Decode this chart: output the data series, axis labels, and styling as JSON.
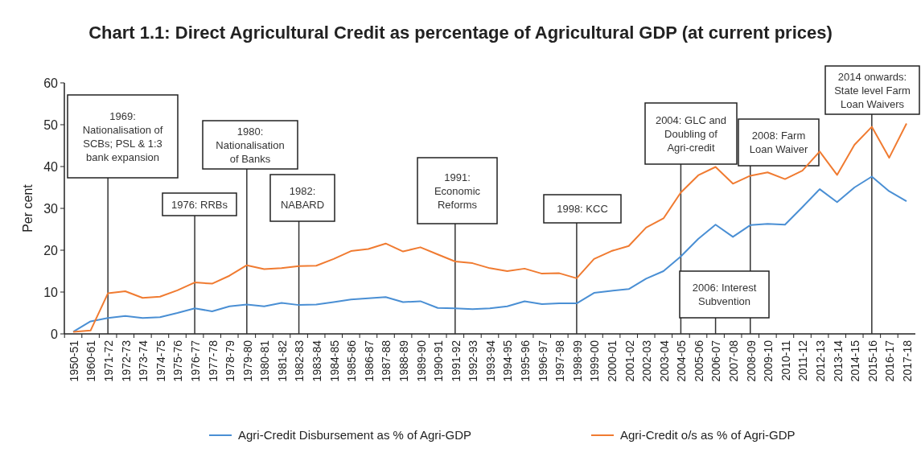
{
  "chart_data": {
    "type": "line",
    "title": "Chart 1.1: Direct Agricultural Credit as percentage of Agricultural GDP (at current prices)",
    "ylabel": "Per cent",
    "categories": [
      "1950-51",
      "1960-61",
      "1971-72",
      "1972-73",
      "1973-74",
      "1974-75",
      "1975-76",
      "1976-77",
      "1977-78",
      "1978-79",
      "1979-80",
      "1980-81",
      "1981-82",
      "1982-83",
      "1983-84",
      "1984-85",
      "1985-86",
      "1986-87",
      "1987-88",
      "1988-89",
      "1989-90",
      "1990-91",
      "1991-92",
      "1992-93",
      "1993-94",
      "1994-95",
      "1995-96",
      "1996-97",
      "1997-98",
      "1998-99",
      "1999-00",
      "2000-01",
      "2001-02",
      "2002-03",
      "2003-04",
      "2004-05",
      "2005-06",
      "2006-07",
      "2007-08",
      "2008-09",
      "2009-10",
      "2010-11",
      "2011-12",
      "2012-13",
      "2013-14",
      "2014-15",
      "2015-16",
      "2016-17",
      "2017-18"
    ],
    "series": [
      {
        "name": "Agri-Credit Disbursement as % of Agri-GDP",
        "color": "#4a8fd4",
        "values": [
          0.5,
          3,
          3.8,
          4.3,
          3.8,
          4,
          5,
          6.1,
          5.4,
          6.6,
          7,
          6.6,
          7.4,
          6.9,
          7,
          7.6,
          8.2,
          8.5,
          8.8,
          7.6,
          7.8,
          6.2,
          6.1,
          5.9,
          6.1,
          6.6,
          7.8,
          7.1,
          7.3,
          7.3,
          9.8,
          10.3,
          10.7,
          13.2,
          15,
          18.5,
          22.7,
          26.1,
          23.2,
          26,
          26.3,
          26.1,
          30.3,
          34.6,
          31.5,
          35,
          37.6,
          34.1,
          31.7
        ]
      },
      {
        "name": "Agri-Credit o/s as % of Agri-GDP",
        "color": "#f07b31",
        "values": [
          0.5,
          0.8,
          9.7,
          10.2,
          8.6,
          8.9,
          10.4,
          12.3,
          12,
          13.9,
          16.4,
          15.5,
          15.7,
          16.2,
          16.3,
          17.9,
          19.8,
          20.3,
          21.6,
          19.7,
          20.7,
          19,
          17.3,
          16.9,
          15.7,
          15,
          15.6,
          14.4,
          14.5,
          13.3,
          17.9,
          19.8,
          21,
          25.4,
          27.6,
          33.8,
          37.9,
          39.9,
          35.9,
          37.8,
          38.6,
          37,
          39,
          43.6,
          38,
          45.2,
          49.5,
          42.1,
          50.3
        ]
      }
    ],
    "ylim": [
      0,
      60
    ],
    "yticks": [
      0,
      10,
      20,
      30,
      40,
      50,
      60
    ],
    "grid": false,
    "legend": "bottom",
    "marker": "none",
    "line_style": "solid",
    "ref_lines": [
      {
        "axis": "x",
        "value": "1971-72",
        "label": "1969:\nNationalisation of\nSCBs; PSL & 1:3\nbank expansion"
      },
      {
        "axis": "x",
        "value": "1976-77",
        "label": "1976: RRBs"
      },
      {
        "axis": "x",
        "value": "1979-80",
        "label": "1980:\nNationalisation\nof Banks"
      },
      {
        "axis": "x",
        "value": "1982-83",
        "label": "1982:\nNABARD"
      },
      {
        "axis": "x",
        "value": "1991-92",
        "label": "1991:\nEconomic\nReforms"
      },
      {
        "axis": "x",
        "value": "1998-99",
        "label": "1998: KCC"
      },
      {
        "axis": "x",
        "value": "2004-05",
        "label": "2004: GLC and\nDoubling of\nAgri-credit"
      },
      {
        "axis": "x",
        "value": "2006-07",
        "label": "2006: Interest\nSubvention"
      },
      {
        "axis": "x",
        "value": "2008-09",
        "label": "2008: Farm\nLoan Waiver"
      },
      {
        "axis": "x",
        "value": "2015-16",
        "label": "2014 onwards:\nState level Farm\nLoan Waivers"
      }
    ]
  }
}
